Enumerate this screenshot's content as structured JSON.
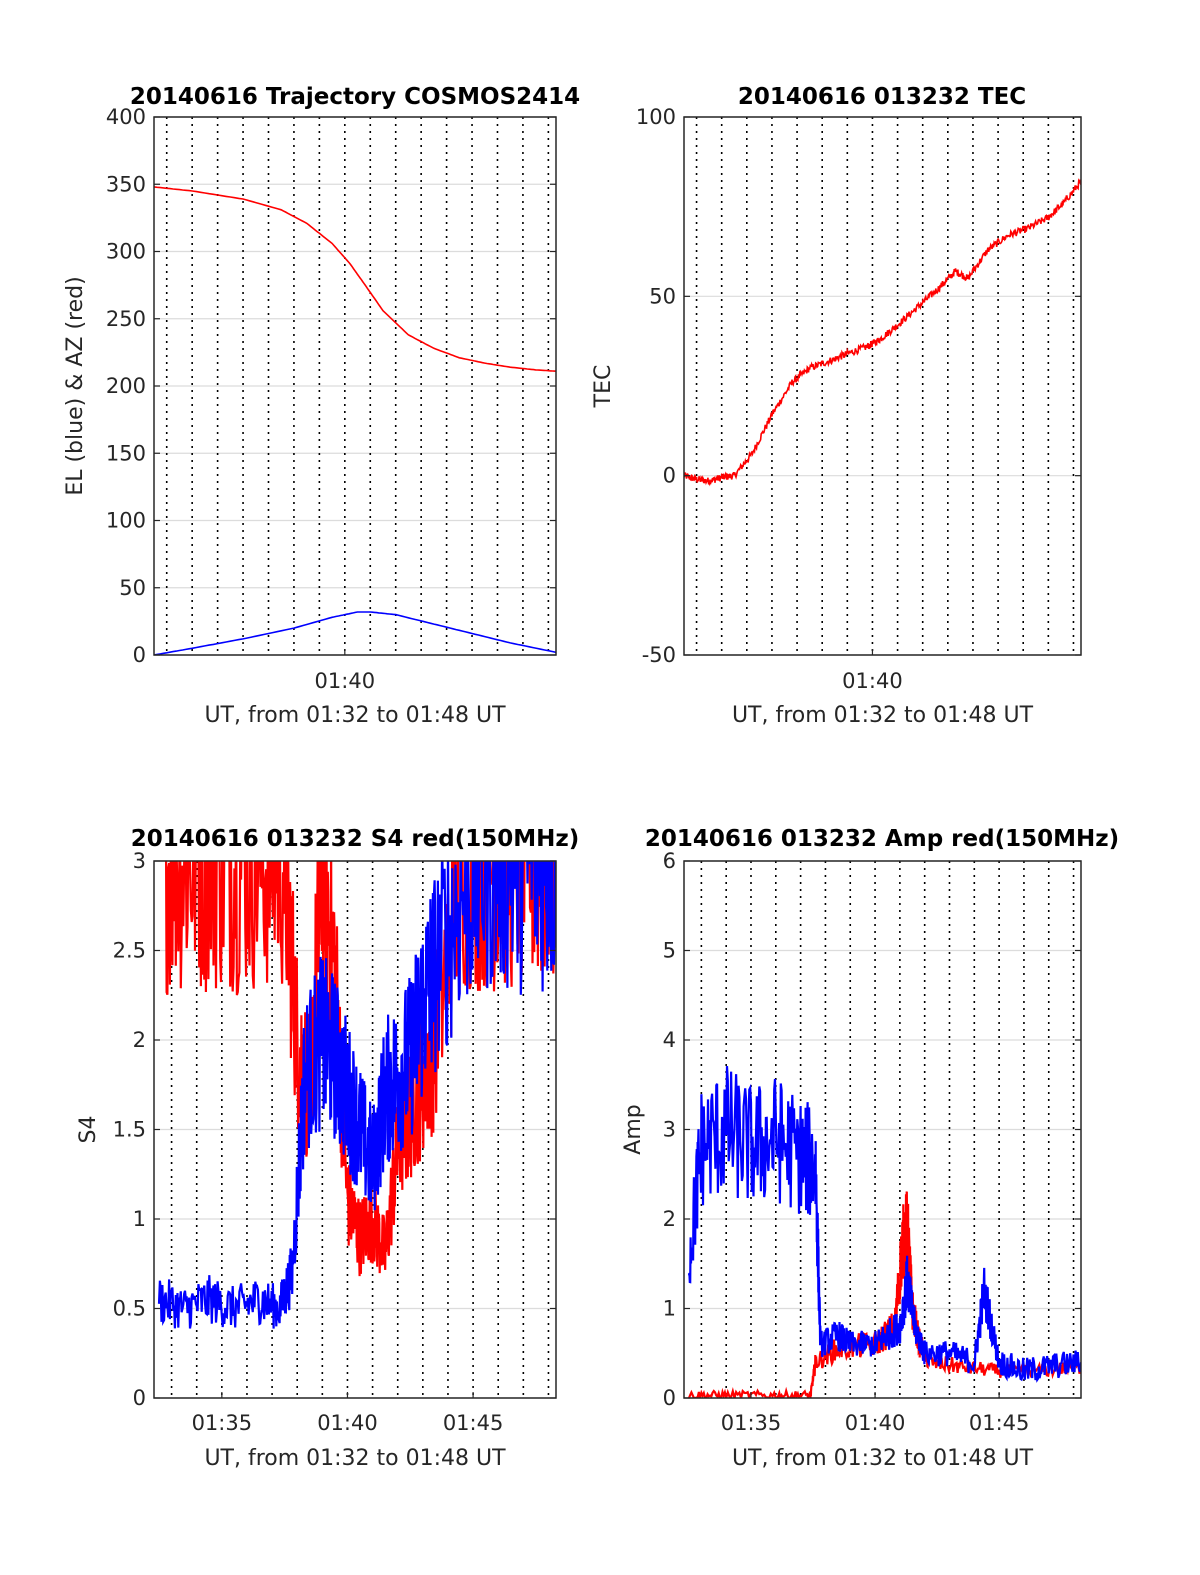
{
  "colors": {
    "red": "#ff0000",
    "blue": "#0000ff",
    "grid_solid": "#dcdcdc",
    "grid_dotted": "#000000",
    "axis": "#262626"
  },
  "chart_data": [
    {
      "id": "trajectory",
      "type": "line",
      "title": "20140616 Trajectory COSMOS2414",
      "xlabel": "UT, from 01:32 to 01:48 UT",
      "ylabel": "EL (blue) & AZ (red)",
      "xlim_min": [
        92.5,
        108.3
      ],
      "ylim": [
        0,
        400
      ],
      "yticks": [
        0,
        50,
        100,
        150,
        200,
        250,
        300,
        350,
        400
      ],
      "xticks": [
        {
          "v": 100,
          "label": "01:40"
        }
      ],
      "grid": {
        "x_dotted_step_min": 1,
        "y_solid": true
      },
      "series": [
        {
          "color": "red",
          "x": [
            92.5,
            94,
            96,
            97.5,
            98.5,
            99.5,
            100.2,
            100.8,
            101.5,
            102.5,
            103.5,
            104.5,
            105.5,
            106.5,
            107.5,
            108.3
          ],
          "y": [
            348,
            345,
            339,
            331,
            321,
            306,
            291,
            275,
            256,
            238,
            228,
            221,
            217,
            214,
            212,
            211
          ]
        },
        {
          "color": "blue",
          "x": [
            92.5,
            94,
            96,
            98,
            99.5,
            100.5,
            101,
            102,
            103.5,
            105,
            106.5,
            108.3
          ],
          "y": [
            0,
            5,
            12,
            20,
            28,
            32,
            32,
            30,
            23,
            16,
            9,
            2
          ]
        }
      ]
    },
    {
      "id": "tec",
      "type": "line",
      "title": "20140616 013232 TEC",
      "xlabel": "UT, from 01:32 to 01:48 UT",
      "ylabel": "TEC",
      "xlim_min": [
        92.5,
        108.3
      ],
      "ylim": [
        -50,
        100
      ],
      "yticks": [
        -50,
        0,
        50,
        100
      ],
      "xticks": [
        {
          "v": 100,
          "label": "01:40"
        }
      ],
      "grid": {
        "x_dotted_step_min": 1,
        "y_solid": true
      },
      "series": [
        {
          "color": "red",
          "noise": 1.0,
          "x": [
            92.5,
            93.0,
            93.5,
            94.0,
            94.5,
            95.2,
            96.0,
            96.8,
            97.5,
            98.3,
            99.0,
            99.8,
            100.3,
            101.0,
            101.8,
            102.6,
            103.3,
            103.8,
            104.6,
            105.4,
            106.2,
            107.0,
            107.6,
            108.3
          ],
          "y": [
            0,
            -1,
            -1.5,
            -0.5,
            0,
            6,
            17,
            26,
            30,
            32,
            34,
            36,
            38,
            42,
            47,
            52,
            57,
            55,
            63,
            67,
            69,
            72,
            76,
            82
          ]
        }
      ]
    },
    {
      "id": "s4",
      "type": "line",
      "title": "20140616 013232 S4 red(150MHz)",
      "xlabel": "UT, from 01:32 to 01:48 UT",
      "ylabel": "S4",
      "xlim_min": [
        92.3,
        108.3
      ],
      "ylim": [
        0,
        3
      ],
      "yticks": [
        0,
        0.5,
        1,
        1.5,
        2,
        2.5,
        3
      ],
      "xticks": [
        {
          "v": 95,
          "label": "01:35"
        },
        {
          "v": 100,
          "label": "01:40"
        },
        {
          "v": 105,
          "label": "01:45"
        }
      ],
      "grid": {
        "x_dotted_step_min": 1,
        "y_solid": true
      },
      "series": [
        {
          "color": "red",
          "noise": 0.08,
          "x": [
            92.5,
            93.5,
            94.5,
            95.5,
            96.5,
            97.5,
            98.0,
            98.5,
            99.0,
            99.5,
            100.0,
            100.5,
            101.0,
            101.5,
            102.0,
            102.5,
            103.0,
            103.5,
            104.5,
            105.5,
            106.5,
            107.5,
            108.3
          ],
          "y": [
            3,
            3,
            3,
            3,
            3,
            3,
            2.0,
            1.7,
            3,
            2.4,
            1.1,
            0.9,
            1.0,
            0.8,
            1.4,
            1.6,
            1.8,
            2.0,
            3,
            3,
            3,
            3,
            3
          ]
        },
        {
          "color": "blue",
          "noise": 0.08,
          "x": [
            92.5,
            93.5,
            94.5,
            95.5,
            96.5,
            97.3,
            97.8,
            98.3,
            99.0,
            99.5,
            100.0,
            100.5,
            101.0,
            101.5,
            102.0,
            102.5,
            103.0,
            103.5,
            104.5,
            105.5,
            106.5,
            107.5,
            108.3
          ],
          "y": [
            0.55,
            0.5,
            0.55,
            0.5,
            0.55,
            0.5,
            0.7,
            1.8,
            2.0,
            1.9,
            1.7,
            1.5,
            1.3,
            1.7,
            1.8,
            1.9,
            2.2,
            2.4,
            2.8,
            3,
            3,
            3,
            3
          ]
        }
      ]
    },
    {
      "id": "amp",
      "type": "line",
      "title": "20140616 013232 Amp red(150MHz)",
      "xlabel": "UT, from 01:32 to 01:48 UT",
      "ylabel": "Amp",
      "xlim_min": [
        92.3,
        108.3
      ],
      "ylim": [
        0,
        6
      ],
      "yticks": [
        0,
        1,
        2,
        3,
        4,
        5,
        6
      ],
      "xticks": [
        {
          "v": 95,
          "label": "01:35"
        },
        {
          "v": 100,
          "label": "01:40"
        },
        {
          "v": 105,
          "label": "01:45"
        }
      ],
      "grid": {
        "x_dotted_step_min": 1,
        "y_solid": true
      },
      "series": [
        {
          "color": "red",
          "noise": 0.05,
          "x": [
            92.5,
            94.0,
            96.0,
            97.4,
            97.6,
            98.5,
            100.0,
            100.8,
            101.1,
            101.3,
            101.5,
            101.8,
            102.2,
            103.5,
            105.0,
            106.5,
            108.3
          ],
          "y": [
            0.03,
            0.03,
            0.03,
            0.03,
            0.4,
            0.55,
            0.6,
            0.8,
            1.7,
            1.9,
            1.0,
            0.6,
            0.4,
            0.35,
            0.3,
            0.3,
            0.35
          ]
        },
        {
          "color": "blue",
          "noise": 0.15,
          "x": [
            92.5,
            93.0,
            94.0,
            95.0,
            96.0,
            97.0,
            97.6,
            97.8,
            98.5,
            99.0,
            100.0,
            100.5,
            101.0,
            101.3,
            101.6,
            102.0,
            103.0,
            104.0,
            104.4,
            105.0,
            106.0,
            107.0,
            108.3
          ],
          "y": [
            1.5,
            2.8,
            3.0,
            2.8,
            2.9,
            2.7,
            2.6,
            0.6,
            0.7,
            0.6,
            0.6,
            0.7,
            0.8,
            1.3,
            0.8,
            0.5,
            0.5,
            0.4,
            1.2,
            0.4,
            0.3,
            0.35,
            0.4
          ]
        }
      ]
    }
  ]
}
